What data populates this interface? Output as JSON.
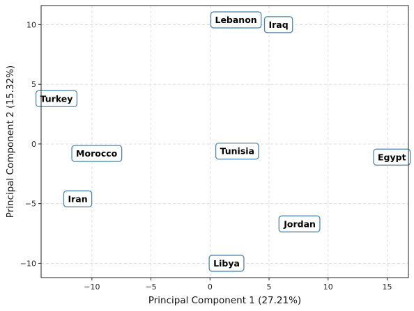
{
  "chart_data": {
    "type": "scatter",
    "title": "",
    "xlabel": "Principal Component 1 (27.21%)",
    "ylabel": "Principal Component 2 (15.32%)",
    "xlim": [
      -14.3,
      16.8
    ],
    "ylim": [
      -11.2,
      11.6
    ],
    "xticks": [
      -10,
      -5,
      0,
      5,
      10,
      15
    ],
    "yticks": [
      -10,
      -5,
      0,
      5,
      10
    ],
    "grid": true,
    "point_color": "#4f86b0",
    "points": [
      {
        "label": "Lebanon",
        "x": 2.2,
        "y": 10.4
      },
      {
        "label": "Iraq",
        "x": 5.8,
        "y": 10.0
      },
      {
        "label": "Turkey",
        "x": -13.0,
        "y": 3.8
      },
      {
        "label": "Morocco",
        "x": -9.6,
        "y": -0.8
      },
      {
        "label": "Tunisia",
        "x": 2.3,
        "y": -0.6
      },
      {
        "label": "Egypt",
        "x": 15.4,
        "y": -1.1
      },
      {
        "label": "Iran",
        "x": -11.2,
        "y": -4.6
      },
      {
        "label": "Jordan",
        "x": 7.6,
        "y": -6.7
      },
      {
        "label": "Libya",
        "x": 1.4,
        "y": -10.0
      }
    ]
  }
}
